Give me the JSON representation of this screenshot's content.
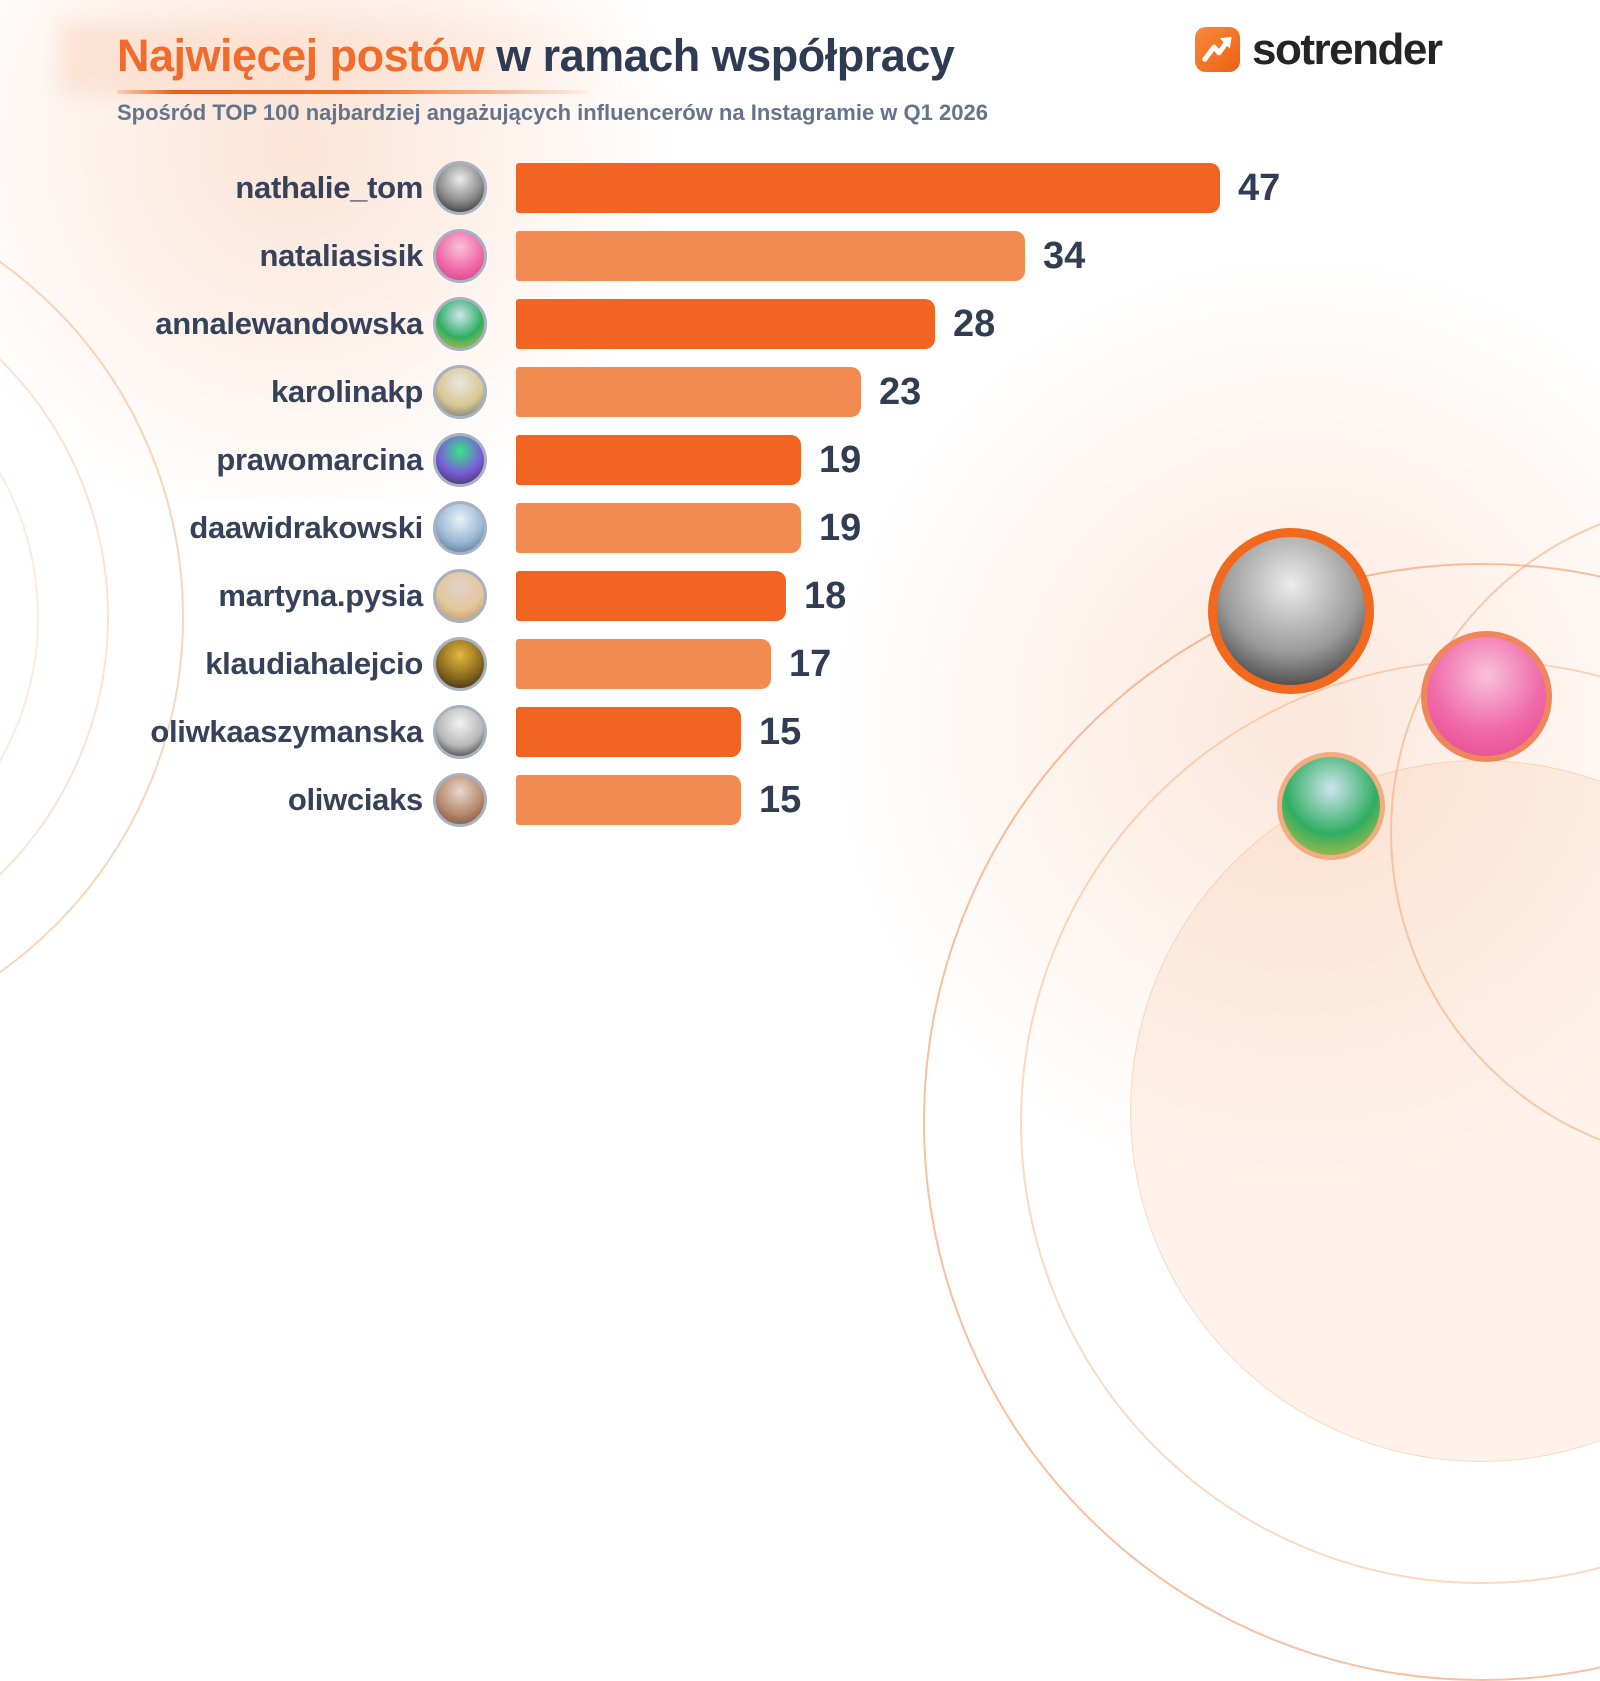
{
  "header": {
    "title_highlight": "Najwięcej postów",
    "title_rest": " w ramach współpracy",
    "subtitle": "Spośród TOP 100 najbardziej angażujących influencerów na Instagramie w Q1 2026",
    "title_highlight_color": "#F06C2C",
    "title_rest_color": "#2F3B52",
    "subtitle_color": "#64748C"
  },
  "logo": {
    "text": "sotrender",
    "icon": "trend-arrow-icon",
    "icon_color": "#F26B1D",
    "icon_color_light": "#F78A3A",
    "text_color": "#242424"
  },
  "chart_data": {
    "type": "bar",
    "orientation": "horizontal",
    "title": "Najwięcej postów w ramach współpracy",
    "subtitle": "Spośród TOP 100 najbardziej angażujących influencerów na Instagramie w Q1 2026",
    "categories": [
      "nathalie_tom",
      "nataliasisik",
      "annalewandowska",
      "karolinakp",
      "prawomarcina",
      "daawidrakowski",
      "martyna.pysia",
      "klaudiahalejcio",
      "oliwkaaszymanska",
      "oliwciaks"
    ],
    "values": [
      47,
      34,
      28,
      23,
      19,
      19,
      18,
      17,
      15,
      15
    ],
    "xlim": [
      0,
      47
    ],
    "grid": false,
    "legend": false,
    "value_labels": "end-of-bar",
    "bar_color_odd_rows": "#F26422",
    "bar_color_even_rows": "#F28B52",
    "label_color": "#36415A",
    "value_color": "#303D52"
  },
  "avatars": [
    {
      "name": "nathalie_tom-avatar",
      "colors": [
        "#ececec",
        "#8a8a8a",
        "#1c1c1c"
      ]
    },
    {
      "name": "nataliasisik-avatar",
      "colors": [
        "#f9c2d8",
        "#f06aaa",
        "#d23b7e"
      ]
    },
    {
      "name": "annalewandowska-avatar",
      "colors": [
        "#cfe4ef",
        "#2fae62",
        "#e0bd3a"
      ]
    },
    {
      "name": "karolinakp-avatar",
      "colors": [
        "#e9e6df",
        "#d9c893",
        "#5d6670"
      ]
    },
    {
      "name": "prawomarcina-avatar",
      "colors": [
        "#37e487",
        "#7a5bd8",
        "#312a3e"
      ]
    },
    {
      "name": "daawidrakowski-avatar",
      "colors": [
        "#eaf2f9",
        "#9cb9d6",
        "#4a6a8a"
      ]
    },
    {
      "name": "martyna.pysia-avatar",
      "colors": [
        "#ded3cb",
        "#e4c79b",
        "#b39066"
      ]
    },
    {
      "name": "klaudiahalejcio-avatar",
      "colors": [
        "#e3b93f",
        "#8a6a1e",
        "#2a1c12"
      ]
    },
    {
      "name": "oliwkaaszymanska-avatar",
      "colors": [
        "#f2f2f2",
        "#b9b9b9",
        "#1f1f1f"
      ]
    },
    {
      "name": "oliwciaks-avatar",
      "colors": [
        "#e8d9cf",
        "#b98a6e",
        "#6e4636"
      ]
    }
  ],
  "decor": {
    "accent": "#F26B1D",
    "circles": [
      {
        "name": "decor-photo-nathalie_tom",
        "ring": "#F2691E",
        "colors": [
          "#ececec",
          "#9a9a9a",
          "#1d1d1d"
        ]
      },
      {
        "name": "decor-photo-nataliasisik",
        "ring": "#F0875C",
        "colors": [
          "#f9c2d8",
          "#f06aaa",
          "#e2458c"
        ]
      },
      {
        "name": "decor-photo-annalewandowska",
        "ring": "#F2AC82",
        "colors": [
          "#cfe4ef",
          "#2fae62",
          "#e0bd3a"
        ]
      }
    ]
  }
}
